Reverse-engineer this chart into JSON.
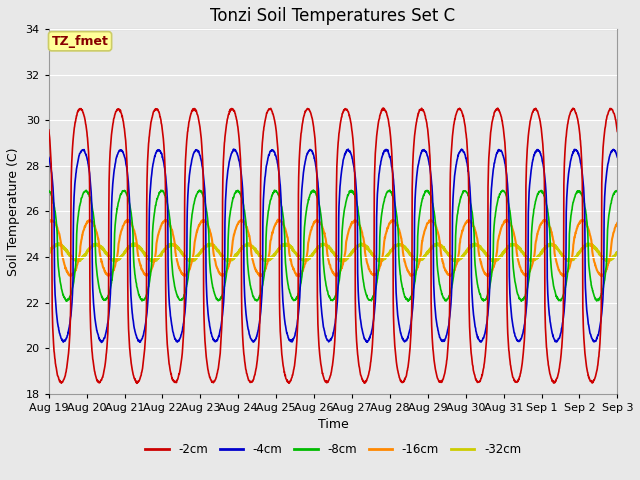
{
  "title": "Tonzi Soil Temperatures Set C",
  "xlabel": "Time",
  "ylabel": "Soil Temperature (C)",
  "ylim": [
    18,
    34
  ],
  "yticks": [
    18,
    20,
    22,
    24,
    26,
    28,
    30,
    32,
    34
  ],
  "date_labels": [
    "Aug 19",
    "Aug 20",
    "Aug 21",
    "Aug 22",
    "Aug 23",
    "Aug 24",
    "Aug 25",
    "Aug 26",
    "Aug 27",
    "Aug 28",
    "Aug 29",
    "Aug 30",
    "Aug 31",
    "Sep 1",
    "Sep 2",
    "Sep 3"
  ],
  "series_labels": [
    "-2cm",
    "-4cm",
    "-8cm",
    "-16cm",
    "-32cm"
  ],
  "series_colors": [
    "#cc0000",
    "#0000cc",
    "#00bb00",
    "#ff8800",
    "#cccc00"
  ],
  "annotation_text": "TZ_fmet",
  "annotation_color": "#880000",
  "annotation_bg": "#ffff99",
  "annotation_edge": "#cccc66",
  "n_days": 15,
  "pts_per_day": 144,
  "amplitudes": [
    6.0,
    4.2,
    2.4,
    1.2,
    0.35
  ],
  "phase_shifts_hours": [
    0.0,
    1.5,
    3.5,
    6.0,
    10.0
  ],
  "means": [
    24.5,
    24.5,
    24.5,
    24.4,
    24.2
  ],
  "peak_hour": 14.0,
  "sharpness": [
    4.0,
    3.0,
    2.0,
    1.5,
    1.0
  ],
  "background_color": "#e8e8e8",
  "plot_bg_color": "#e8e8e8",
  "fig_width": 6.4,
  "fig_height": 4.8,
  "dpi": 100
}
